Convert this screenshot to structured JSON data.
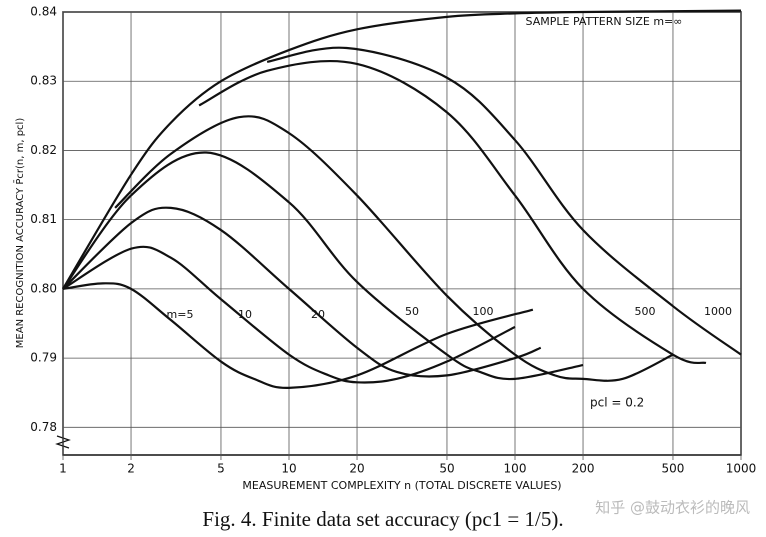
{
  "chart_data": {
    "type": "line",
    "xscale": "log",
    "xlabel": "MEASUREMENT COMPLEXITY n (TOTAL DISCRETE VALUES)",
    "ylabel": "MEAN RECOGNITION ACCURACY P̄cr(n, m, pcl)",
    "caption": "Fig. 4.   Finite data set accuracy (pc1 = 1/5).",
    "watermark": "知乎 @鼓动衣衫的晚风",
    "annotations": [
      "pcl = 0.2"
    ],
    "xlim": [
      1,
      1000
    ],
    "xticks": [
      1,
      2,
      5,
      10,
      20,
      50,
      100,
      200,
      500,
      {
        "value": 1000,
        "label": "1000"
      }
    ],
    "ylim": [
      0.776,
      0.84
    ],
    "yticks": [
      0.78,
      0.79,
      {
        "value": 0.8,
        "label": "0.80"
      },
      0.81,
      0.82,
      0.83,
      0.84
    ],
    "grid": true,
    "color": "#111111",
    "series": [
      {
        "name": "m=5",
        "x": [
          1,
          1.5,
          2,
          3,
          5,
          7,
          10,
          20,
          50,
          120
        ],
        "values": [
          0.8,
          0.8008,
          0.8,
          0.7955,
          0.7895,
          0.787,
          0.7857,
          0.7875,
          0.7935,
          0.797
        ]
      },
      {
        "name": "10",
        "x": [
          1,
          2,
          3,
          5,
          10,
          15,
          20,
          30,
          50,
          100
        ],
        "values": [
          0.8,
          0.8058,
          0.8045,
          0.7985,
          0.7905,
          0.7875,
          0.7865,
          0.787,
          0.7895,
          0.7945
        ]
      },
      {
        "name": "20",
        "x": [
          1,
          2,
          3,
          5,
          10,
          20,
          30,
          50,
          100,
          130
        ],
        "values": [
          0.8,
          0.8095,
          0.8117,
          0.8085,
          0.8,
          0.7915,
          0.788,
          0.7875,
          0.79,
          0.7915
        ]
      },
      {
        "name": "50",
        "x": [
          1,
          2,
          4.3,
          10,
          20,
          50,
          70,
          100,
          200
        ],
        "values": [
          0.8,
          0.8135,
          0.8197,
          0.8125,
          0.801,
          0.7905,
          0.788,
          0.787,
          0.789
        ]
      },
      {
        "name": "100",
        "x": [
          1.7,
          3,
          6,
          10,
          20,
          50,
          100,
          150,
          200,
          300,
          500
        ],
        "values": [
          0.8117,
          0.8195,
          0.8248,
          0.8225,
          0.8135,
          0.799,
          0.7905,
          0.7875,
          0.787,
          0.787,
          0.7905
        ]
      },
      {
        "name": "500",
        "x": [
          4,
          8,
          20,
          50,
          100,
          200,
          500,
          700
        ],
        "values": [
          0.8265,
          0.8315,
          0.8325,
          0.8255,
          0.8135,
          0.8,
          0.7905,
          0.7893
        ]
      },
      {
        "name": "1000",
        "x": [
          8,
          18,
          50,
          100,
          200,
          500,
          1000
        ],
        "values": [
          0.8328,
          0.8348,
          0.8305,
          0.8215,
          0.8085,
          0.7975,
          0.7905
        ]
      },
      {
        "name": "SAMPLE PATTERN SIZE m=∞",
        "x": [
          1,
          2,
          3,
          5,
          10,
          20,
          50,
          100,
          200,
          1000
        ],
        "values": [
          0.8,
          0.8165,
          0.824,
          0.83,
          0.8345,
          0.8375,
          0.8393,
          0.8398,
          0.84,
          0.8402
        ]
      }
    ]
  }
}
